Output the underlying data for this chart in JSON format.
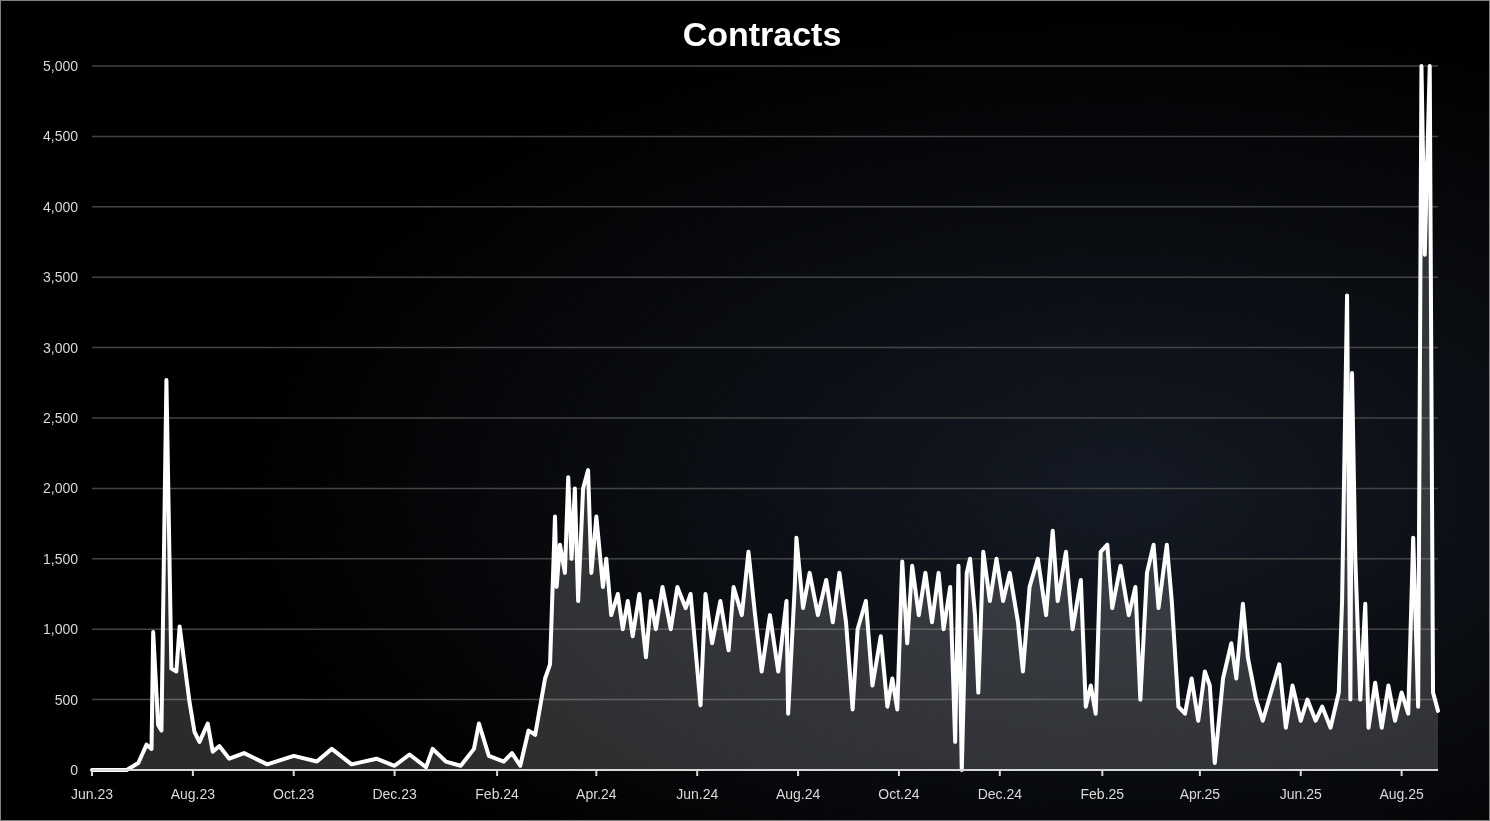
{
  "chart_data": {
    "type": "area",
    "title": "Contracts",
    "xlim": [
      "2023-06-01",
      "2025-08-23"
    ],
    "xticks": [
      {
        "value": "2023-06-01",
        "label": "Jun.23"
      },
      {
        "value": "2023-08-01",
        "label": "Aug.23"
      },
      {
        "value": "2023-10-01",
        "label": "Oct.23"
      },
      {
        "value": "2023-12-01",
        "label": "Dec.23"
      },
      {
        "value": "2024-02-01",
        "label": "Feb.24"
      },
      {
        "value": "2024-04-01",
        "label": "Apr.24"
      },
      {
        "value": "2024-06-01",
        "label": "Jun.24"
      },
      {
        "value": "2024-08-01",
        "label": "Aug.24"
      },
      {
        "value": "2024-10-01",
        "label": "Oct.24"
      },
      {
        "value": "2024-12-01",
        "label": "Dec.24"
      },
      {
        "value": "2025-02-01",
        "label": "Feb.25"
      },
      {
        "value": "2025-04-01",
        "label": "Apr.25"
      },
      {
        "value": "2025-06-01",
        "label": "Jun.25"
      },
      {
        "value": "2025-08-01",
        "label": "Aug.25"
      }
    ],
    "ylim": [
      0,
      5000
    ],
    "yticks": [
      {
        "value": 0,
        "label": "0"
      },
      {
        "value": 500,
        "label": "500"
      },
      {
        "value": 1000,
        "label": "1,000"
      },
      {
        "value": 1500,
        "label": "1,500"
      },
      {
        "value": 2000,
        "label": "2,000"
      },
      {
        "value": 2500,
        "label": "2,500"
      },
      {
        "value": 3000,
        "label": "3,000"
      },
      {
        "value": 3500,
        "label": "3,500"
      },
      {
        "value": 4000,
        "label": "4,000"
      },
      {
        "value": 4500,
        "label": "4,500"
      },
      {
        "value": 5000,
        "label": "5,000"
      }
    ],
    "grid": "y",
    "line_style": "solid",
    "series": [
      {
        "color": "#ffffff",
        "x": [
          "2023-06-01",
          "2023-06-22",
          "2023-06-29",
          "2023-07-04",
          "2023-07-07",
          "2023-07-08",
          "2023-07-11",
          "2023-07-13",
          "2023-07-16",
          "2023-07-19",
          "2023-07-22",
          "2023-07-24",
          "2023-07-27",
          "2023-07-30",
          "2023-08-02",
          "2023-08-05",
          "2023-08-10",
          "2023-08-13",
          "2023-08-17",
          "2023-08-23",
          "2023-09-01",
          "2023-09-15",
          "2023-10-01",
          "2023-10-15",
          "2023-10-24",
          "2023-11-05",
          "2023-11-20",
          "2023-12-01",
          "2023-12-10",
          "2023-12-20",
          "2023-12-24",
          "2024-01-01",
          "2024-01-10",
          "2024-01-18",
          "2024-01-21",
          "2024-01-27",
          "2024-02-05",
          "2024-02-10",
          "2024-02-15",
          "2024-02-20",
          "2024-02-24",
          "2024-03-01",
          "2024-03-04",
          "2024-03-07",
          "2024-03-08",
          "2024-03-10",
          "2024-03-13",
          "2024-03-15",
          "2024-03-17",
          "2024-03-19",
          "2024-03-21",
          "2024-03-24",
          "2024-03-27",
          "2024-03-29",
          "2024-04-01",
          "2024-04-05",
          "2024-04-07",
          "2024-04-10",
          "2024-04-14",
          "2024-04-17",
          "2024-04-20",
          "2024-04-23",
          "2024-04-27",
          "2024-05-01",
          "2024-05-04",
          "2024-05-07",
          "2024-05-11",
          "2024-05-16",
          "2024-05-20",
          "2024-05-25",
          "2024-05-28",
          "2024-06-03",
          "2024-06-06",
          "2024-06-10",
          "2024-06-15",
          "2024-06-20",
          "2024-06-23",
          "2024-06-28",
          "2024-07-02",
          "2024-07-06",
          "2024-07-10",
          "2024-07-15",
          "2024-07-20",
          "2024-07-25",
          "2024-07-26",
          "2024-07-30",
          "2024-07-31",
          "2024-08-04",
          "2024-08-08",
          "2024-08-13",
          "2024-08-18",
          "2024-08-22",
          "2024-08-26",
          "2024-08-30",
          "2024-09-03",
          "2024-09-06",
          "2024-09-11",
          "2024-09-15",
          "2024-09-20",
          "2024-09-24",
          "2024-09-27",
          "2024-09-30",
          "2024-10-03",
          "2024-10-06",
          "2024-10-09",
          "2024-10-13",
          "2024-10-17",
          "2024-10-21",
          "2024-10-25",
          "2024-10-28",
          "2024-11-01",
          "2024-11-04",
          "2024-11-06",
          "2024-11-08",
          "2024-11-11",
          "2024-11-13",
          "2024-11-16",
          "2024-11-18",
          "2024-11-21",
          "2024-11-25",
          "2024-11-29",
          "2024-12-03",
          "2024-12-07",
          "2024-12-12",
          "2024-12-15",
          "2024-12-19",
          "2024-12-24",
          "2024-12-29",
          "2025-01-02",
          "2025-01-05",
          "2025-01-10",
          "2025-01-14",
          "2025-01-19",
          "2025-01-22",
          "2025-01-25",
          "2025-01-28",
          "2025-01-31",
          "2025-02-04",
          "2025-02-07",
          "2025-02-12",
          "2025-02-17",
          "2025-02-21",
          "2025-02-24",
          "2025-02-28",
          "2025-03-04",
          "2025-03-07",
          "2025-03-12",
          "2025-03-15",
          "2025-03-19",
          "2025-03-23",
          "2025-03-27",
          "2025-03-31",
          "2025-04-04",
          "2025-04-07",
          "2025-04-10",
          "2025-04-15",
          "2025-04-20",
          "2025-04-23",
          "2025-04-27",
          "2025-04-30",
          "2025-05-05",
          "2025-05-09",
          "2025-05-14",
          "2025-05-19",
          "2025-05-23",
          "2025-05-27",
          "2025-06-01",
          "2025-06-05",
          "2025-06-10",
          "2025-06-14",
          "2025-06-19",
          "2025-06-24",
          "2025-06-26",
          "2025-06-29",
          "2025-07-01",
          "2025-07-02",
          "2025-07-04",
          "2025-07-07",
          "2025-07-10",
          "2025-07-12",
          "2025-07-16",
          "2025-07-20",
          "2025-07-24",
          "2025-07-28",
          "2025-08-01",
          "2025-08-05",
          "2025-08-08",
          "2025-08-11",
          "2025-08-13",
          "2025-08-15",
          "2025-08-18",
          "2025-08-20",
          "2025-08-23"
        ],
        "values": [
          0,
          0,
          50,
          180,
          150,
          980,
          320,
          280,
          2770,
          720,
          700,
          1020,
          750,
          480,
          270,
          200,
          330,
          130,
          170,
          80,
          120,
          40,
          100,
          60,
          150,
          40,
          80,
          30,
          110,
          20,
          150,
          60,
          30,
          150,
          330,
          100,
          60,
          120,
          30,
          280,
          250,
          650,
          750,
          1800,
          1300,
          1600,
          1400,
          2080,
          1500,
          2000,
          1200,
          2000,
          2130,
          1400,
          1800,
          1300,
          1500,
          1100,
          1250,
          1000,
          1200,
          950,
          1250,
          800,
          1200,
          1000,
          1300,
          1000,
          1300,
          1150,
          1250,
          460,
          1250,
          900,
          1200,
          850,
          1300,
          1100,
          1550,
          1100,
          700,
          1100,
          700,
          1200,
          400,
          1300,
          1650,
          1150,
          1400,
          1100,
          1350,
          1050,
          1400,
          1050,
          430,
          1000,
          1200,
          600,
          950,
          450,
          650,
          430,
          1480,
          900,
          1450,
          1100,
          1400,
          1050,
          1400,
          1000,
          1300,
          200,
          1450,
          0,
          1400,
          1500,
          1100,
          550,
          1550,
          1200,
          1500,
          1200,
          1400,
          1050,
          700,
          1300,
          1500,
          1100,
          1700,
          1200,
          1550,
          1000,
          1350,
          450,
          600,
          400,
          1550,
          1600,
          1150,
          1450,
          1100,
          1300,
          500,
          1400,
          1600,
          1150,
          1600,
          1200,
          450,
          400,
          650,
          350,
          700,
          600,
          50,
          650,
          900,
          650,
          1180,
          800,
          500,
          350,
          550,
          750,
          300,
          600,
          350,
          500,
          350,
          450,
          300,
          550,
          1200,
          3370,
          500,
          2820,
          1500,
          500,
          1180,
          300,
          620,
          300,
          600,
          350,
          550,
          400,
          1650,
          450,
          5000,
          3660,
          5000,
          550,
          420
        ]
      }
    ]
  }
}
